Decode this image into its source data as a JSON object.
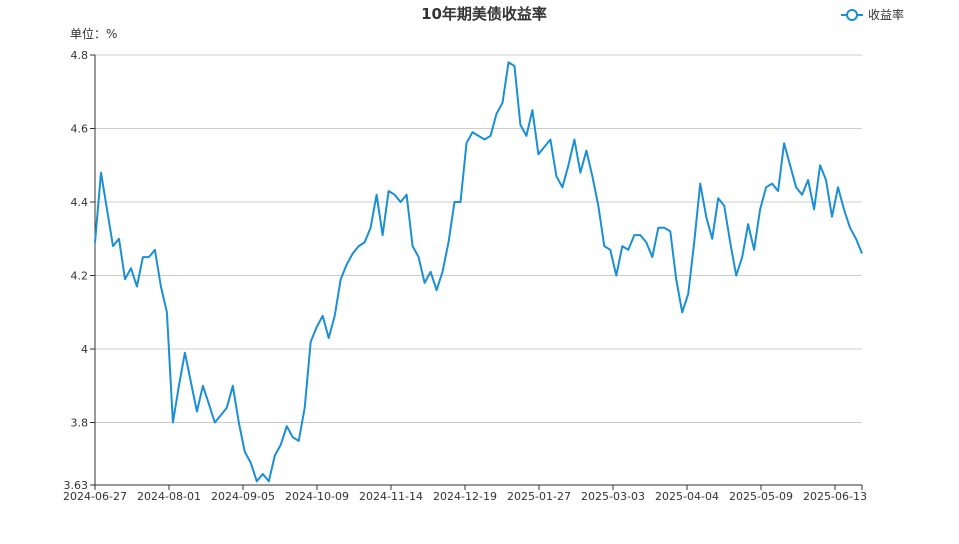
{
  "chart_data": {
    "type": "line",
    "title": "10年期美债收益率",
    "unit_label": "单位：%",
    "legend": {
      "label": "收益率",
      "placement": "top-right"
    },
    "series_color": "#1a8fd6",
    "grid": true,
    "ylim": [
      3.63,
      4.8
    ],
    "y_ticks": [
      "4.8",
      "4.6",
      "4.4",
      "4.2",
      "4",
      "3.8",
      "3.63"
    ],
    "y_tick_values": [
      4.8,
      4.6,
      4.4,
      4.2,
      4.0,
      3.8,
      3.63
    ],
    "x_ticks": [
      "2024-06-27",
      "2024-08-01",
      "2024-09-05",
      "2024-10-09",
      "2024-11-14",
      "2024-12-19",
      "2025-01-27",
      "2025-03-03",
      "2025-04-04",
      "2025-05-09",
      "2025-06-13"
    ],
    "x_range": [
      "2024-06-27",
      "2025-06-26"
    ],
    "series": [
      {
        "name": "收益率",
        "values": [
          4.29,
          4.48,
          4.38,
          4.28,
          4.3,
          4.19,
          4.22,
          4.17,
          4.25,
          4.25,
          4.27,
          4.17,
          4.1,
          3.8,
          3.9,
          3.99,
          3.91,
          3.83,
          3.9,
          3.85,
          3.8,
          3.82,
          3.84,
          3.9,
          3.8,
          3.72,
          3.69,
          3.64,
          3.66,
          3.64,
          3.71,
          3.74,
          3.79,
          3.76,
          3.75,
          3.84,
          4.02,
          4.06,
          4.09,
          4.03,
          4.09,
          4.19,
          4.23,
          4.26,
          4.28,
          4.29,
          4.33,
          4.42,
          4.31,
          4.43,
          4.42,
          4.4,
          4.42,
          4.28,
          4.25,
          4.18,
          4.21,
          4.16,
          4.21,
          4.29,
          4.4,
          4.4,
          4.56,
          4.59,
          4.58,
          4.57,
          4.58,
          4.64,
          4.67,
          4.78,
          4.77,
          4.61,
          4.58,
          4.65,
          4.53,
          4.55,
          4.57,
          4.47,
          4.44,
          4.5,
          4.57,
          4.48,
          4.54,
          4.47,
          4.39,
          4.28,
          4.27,
          4.2,
          4.28,
          4.27,
          4.31,
          4.31,
          4.29,
          4.25,
          4.33,
          4.33,
          4.32,
          4.19,
          4.1,
          4.15,
          4.29,
          4.45,
          4.36,
          4.3,
          4.41,
          4.39,
          4.29,
          4.2,
          4.25,
          4.34,
          4.27,
          4.38,
          4.44,
          4.45,
          4.43,
          4.56,
          4.5,
          4.44,
          4.42,
          4.46,
          4.38,
          4.5,
          4.46,
          4.36,
          4.44,
          4.38,
          4.33,
          4.3,
          4.26
        ]
      }
    ]
  }
}
